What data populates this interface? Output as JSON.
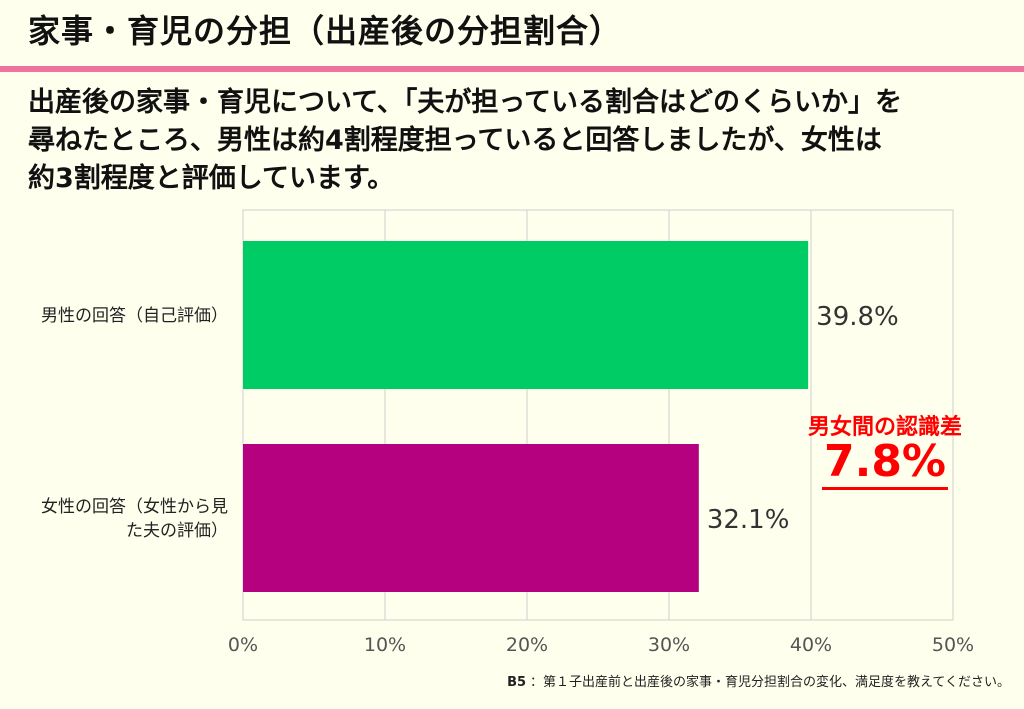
{
  "title": "家事・育児の分担（出産後の分担割合）",
  "lead_lines": [
    "出産後の家事・育児について、「夫が担っている割合はどのくらいか」を",
    "尋ねたところ、男性は約4割程度担っていると回答しましたが、女性は",
    "約3割程度と評価しています。"
  ],
  "colors": {
    "title_rule": "#F0739F",
    "male_bar": "#00CC66",
    "female_bar": "#B5007F",
    "highlight": "#FF0000",
    "background": "#FFFFEE"
  },
  "chart_data": {
    "type": "bar",
    "orientation": "horizontal",
    "categories": [
      "男性の回答（自己評価）",
      "女性の回答（女性から見た夫の評価）"
    ],
    "values": [
      39.8,
      32.1
    ],
    "value_labels": [
      "39.8%",
      "32.1%"
    ],
    "xlim": [
      0,
      50
    ],
    "x_ticks": [
      0,
      10,
      20,
      30,
      40,
      50
    ],
    "x_tick_labels": [
      "0%",
      "10%",
      "20%",
      "30%",
      "40%",
      "50%"
    ],
    "grid": true,
    "annotation": {
      "label": "男女間の認識差",
      "value": "7.8%"
    }
  },
  "footnote": {
    "id": "B5",
    "text": "：第１子出産前と出産後の家事・育児分担割合の変化、満足度を教えてください。"
  }
}
